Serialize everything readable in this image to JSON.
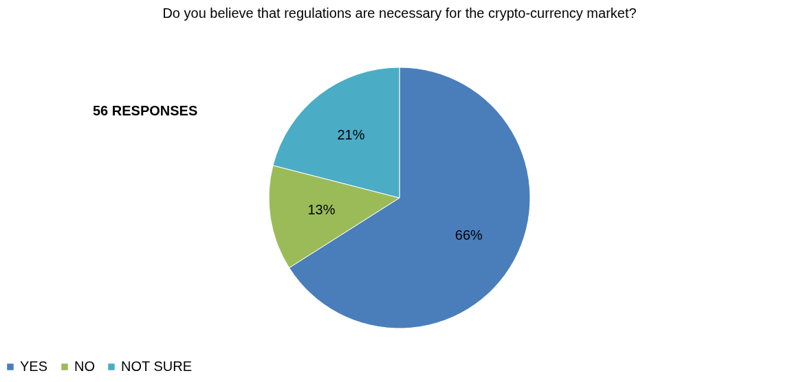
{
  "chart_data": {
    "type": "pie",
    "title": "Do you believe that regulations are necessary for the crypto-currency market?",
    "annotations": [
      "56 RESPONSES"
    ],
    "categories": [
      "YES",
      "NO",
      "NOT SURE"
    ],
    "values": [
      66,
      13,
      21
    ],
    "value_labels": [
      "66%",
      "13%",
      "21%"
    ],
    "colors": [
      "#4a7ebb",
      "#9bbb59",
      "#4bacc6"
    ],
    "legend": "bottom"
  }
}
